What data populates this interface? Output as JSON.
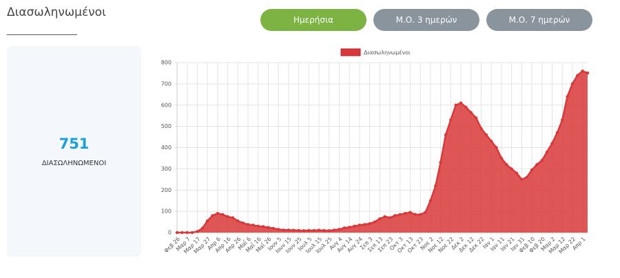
{
  "header": {
    "title": "Διασωληνωμένοι"
  },
  "buttons": [
    "Ημερήσια",
    "Μ.Ο. 3 ημερών",
    "Μ.Ο. 7 ημερών"
  ],
  "stat": {
    "value": "751",
    "label": "ΔΙΑΣΩΛΗΝΩΜΕΝΟΙ"
  },
  "chart_data": {
    "type": "area",
    "categories": [
      "Φεβ 26",
      null,
      "Μαρ 7",
      null,
      "Μαρ 17",
      null,
      "Μαρ 27",
      null,
      "Απρ 6",
      null,
      "Απρ 16",
      null,
      "Απρ 26",
      null,
      "Μαΐ 6",
      null,
      "Μαΐ 16",
      null,
      "Μαΐ 26",
      null,
      "Ιουν 5",
      null,
      "Ιουν 15",
      null,
      "Ιουν 25",
      null,
      "Ιουλ 5",
      null,
      "Ιουλ 15",
      null,
      "Ιουλ 25",
      null,
      "Αυγ 4",
      null,
      "Αυγ 14",
      null,
      "Αυγ 24",
      null,
      "Σεπ 3",
      null,
      "Σεπ 13",
      null,
      "Σεπ 23",
      null,
      "Οκτ 3",
      null,
      "Οκτ 13",
      null,
      "Οκτ 23",
      null,
      "Νοε 2",
      null,
      "Νοε 12",
      null,
      "Νοε 22",
      null,
      "Δεκ 2",
      null,
      "Δεκ 12",
      null,
      "Δεκ 22",
      null,
      "Ιαν 1",
      null,
      "Ιαν 11",
      null,
      "Ιαν 21",
      null,
      "Ιαν 31",
      null,
      "Φεβ 10",
      null,
      "Φεβ 20",
      null,
      "Μαρ 2",
      null,
      "Μαρ 12",
      null,
      "Μαρ 22",
      null,
      "Απρ 1",
      null
    ],
    "series": [
      {
        "name": "Διασωληνωμένοι",
        "color": "#d9383a",
        "values": [
          0,
          0,
          0,
          0,
          5,
          20,
          55,
          80,
          90,
          85,
          75,
          70,
          55,
          45,
          38,
          35,
          30,
          28,
          24,
          20,
          15,
          12,
          12,
          11,
          10,
          9,
          10,
          10,
          11,
          10,
          9,
          12,
          15,
          22,
          25,
          30,
          35,
          38,
          42,
          50,
          65,
          75,
          70,
          80,
          85,
          90,
          95,
          85,
          85,
          95,
          150,
          220,
          330,
          460,
          530,
          600,
          610,
          590,
          565,
          540,
          490,
          460,
          430,
          400,
          350,
          320,
          300,
          280,
          250,
          260,
          295,
          320,
          340,
          380,
          420,
          470,
          530,
          640,
          700,
          740,
          760,
          751
        ]
      }
    ],
    "ylim": [
      0,
      800
    ],
    "yticks": [
      0,
      100,
      200,
      300,
      400,
      500,
      600,
      700,
      800
    ],
    "grid": true
  }
}
